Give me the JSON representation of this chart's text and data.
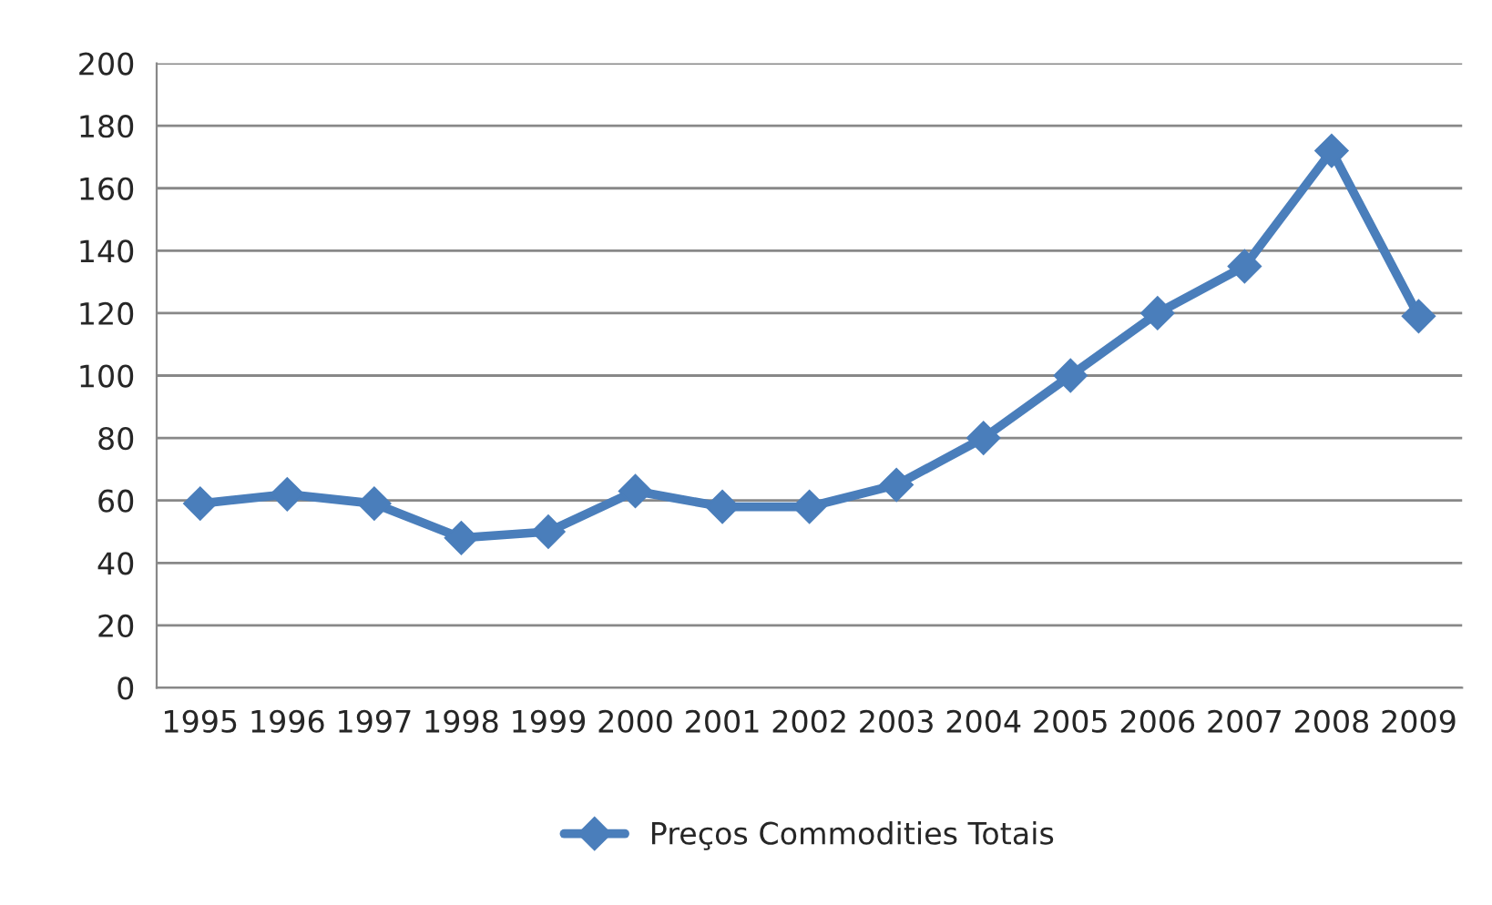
{
  "chart_data": {
    "type": "line",
    "categories": [
      "1995",
      "1996",
      "1997",
      "1998",
      "1999",
      "2000",
      "2001",
      "2002",
      "2003",
      "2004",
      "2005",
      "2006",
      "2007",
      "2008",
      "2009"
    ],
    "series": [
      {
        "name": "Preços Commodities Totais",
        "color": "#4a7ebb",
        "values": [
          59,
          62,
          59,
          48,
          50,
          63,
          58,
          58,
          65,
          80,
          100,
          120,
          135,
          172,
          119
        ]
      }
    ],
    "ylim": [
      0,
      200
    ],
    "yticks": [
      0,
      20,
      40,
      60,
      80,
      100,
      120,
      140,
      160,
      180,
      200
    ],
    "grid": "y",
    "legend": "bottom",
    "marker": "diamond",
    "line_style": "solid"
  }
}
